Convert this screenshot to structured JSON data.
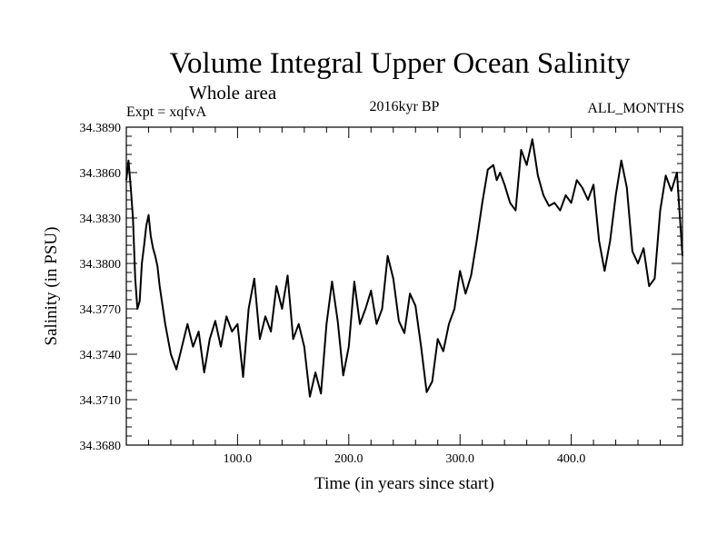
{
  "chart_data": {
    "type": "line",
    "title": "Volume Integral Upper Ocean Salinity",
    "subtitle": "Whole area",
    "left_label": "Expt = xqfvA",
    "center_label": "2016kyr BP",
    "right_label": "ALL_MONTHS",
    "xlabel": "Time (in years since start)",
    "ylabel": "Salinity (in PSU)",
    "xlim": [
      0,
      500
    ],
    "ylim": [
      34.368,
      34.389
    ],
    "x_ticks": [
      100,
      200,
      300,
      400
    ],
    "x_tick_labels": [
      "100.0",
      "200.0",
      "300.0",
      "400.0"
    ],
    "y_ticks": [
      34.368,
      34.371,
      34.374,
      34.377,
      34.38,
      34.383,
      34.386,
      34.389
    ],
    "y_tick_labels": [
      "34.3680",
      "34.3710",
      "34.3740",
      "34.3770",
      "34.3800",
      "34.3830",
      "34.3860",
      "34.3890"
    ],
    "grid": false,
    "series": [
      {
        "name": "Salinity",
        "color": "#000000",
        "x": [
          0,
          2,
          4,
          6,
          8,
          10,
          12,
          14,
          16,
          18,
          20,
          22,
          24,
          26,
          28,
          30,
          35,
          40,
          45,
          50,
          55,
          60,
          65,
          70,
          75,
          80,
          85,
          90,
          95,
          100,
          105,
          110,
          115,
          120,
          125,
          130,
          135,
          140,
          145,
          150,
          155,
          160,
          165,
          170,
          175,
          180,
          185,
          190,
          195,
          200,
          205,
          210,
          215,
          220,
          225,
          230,
          235,
          240,
          245,
          250,
          255,
          260,
          265,
          270,
          275,
          280,
          285,
          290,
          295,
          300,
          305,
          310,
          315,
          320,
          325,
          330,
          333,
          336,
          340,
          345,
          350,
          355,
          360,
          365,
          370,
          375,
          380,
          385,
          390,
          395,
          400,
          405,
          410,
          415,
          420,
          425,
          430,
          435,
          440,
          445,
          450,
          455,
          460,
          465,
          470,
          475,
          480,
          485,
          490,
          495,
          500
        ],
        "values": [
          34.3855,
          34.3868,
          34.385,
          34.383,
          34.379,
          34.377,
          34.3775,
          34.38,
          34.3812,
          34.3825,
          34.3832,
          34.3818,
          34.381,
          34.3805,
          34.3798,
          34.3785,
          34.376,
          34.374,
          34.373,
          34.3745,
          34.376,
          34.3745,
          34.3755,
          34.3728,
          34.375,
          34.3762,
          34.3745,
          34.3765,
          34.3755,
          34.376,
          34.3725,
          34.377,
          34.379,
          34.375,
          34.3765,
          34.3755,
          34.3785,
          34.377,
          34.3792,
          34.375,
          34.376,
          34.3745,
          34.3712,
          34.3728,
          34.3714,
          34.376,
          34.3788,
          34.3762,
          34.3726,
          34.3745,
          34.3788,
          34.376,
          34.377,
          34.3782,
          34.376,
          34.377,
          34.3805,
          34.379,
          34.3762,
          34.3754,
          34.378,
          34.3772,
          34.3745,
          34.3715,
          34.3722,
          34.375,
          34.3742,
          34.376,
          34.377,
          34.3795,
          34.378,
          34.3792,
          34.3815,
          34.384,
          34.3862,
          34.3865,
          34.3855,
          34.386,
          34.3852,
          34.384,
          34.3835,
          34.3875,
          34.3865,
          34.3882,
          34.3858,
          34.3845,
          34.3838,
          34.384,
          34.3835,
          34.3845,
          34.384,
          34.3855,
          34.385,
          34.3842,
          34.3852,
          34.3815,
          34.3795,
          34.3815,
          34.3845,
          34.3868,
          34.385,
          34.3808,
          34.38,
          34.381,
          34.3785,
          34.379,
          34.3835,
          34.3858,
          34.3848,
          34.386,
          34.3805
        ]
      }
    ]
  }
}
